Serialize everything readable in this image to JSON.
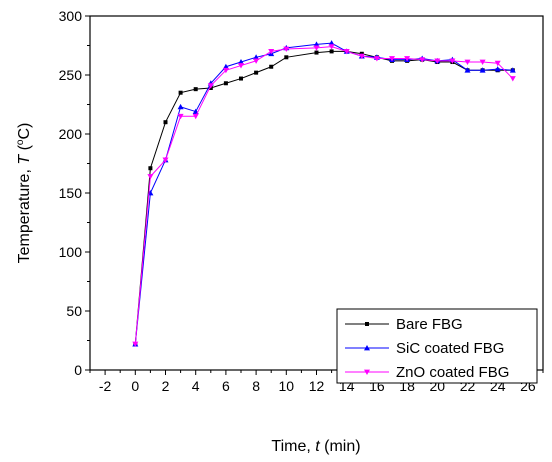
{
  "chart_data": {
    "type": "line",
    "title": "",
    "xlabel_prefix": "Time, ",
    "xlabel_var": "t",
    "xlabel_suffix": " (min)",
    "ylabel_prefix": "Temperature, ",
    "ylabel_var": "T",
    "ylabel_open": " (",
    "ylabel_sup": "o",
    "ylabel_unit": "C)",
    "xlim": [
      -3,
      27
    ],
    "ylim": [
      0,
      300
    ],
    "xticks": [
      -2,
      0,
      2,
      4,
      6,
      8,
      10,
      12,
      14,
      16,
      18,
      20,
      22,
      24,
      26
    ],
    "yticks": [
      0,
      50,
      100,
      150,
      200,
      250,
      300
    ],
    "grid": false,
    "legend_position": "bottom-right",
    "series": [
      {
        "name": "Bare FBG",
        "color": "#000000",
        "marker": "square",
        "x": [
          0,
          1,
          2,
          3,
          4,
          5,
          6,
          7,
          8,
          9,
          10,
          12,
          13,
          14,
          15,
          16,
          17,
          18,
          19,
          20,
          21,
          22,
          23,
          24,
          25
        ],
        "y": [
          22,
          171,
          210,
          235,
          238,
          239,
          243,
          247,
          252,
          257,
          265,
          269,
          270,
          270,
          268,
          265,
          262,
          262,
          263,
          261,
          261,
          254,
          254,
          254,
          254
        ]
      },
      {
        "name": "SiC coated FBG",
        "color": "#0000ff",
        "marker": "triangle-up",
        "x": [
          0,
          1,
          2,
          3,
          4,
          5,
          6,
          7,
          8,
          9,
          10,
          12,
          13,
          14,
          15,
          16,
          17,
          18,
          19,
          20,
          21,
          22,
          23,
          24,
          25
        ],
        "y": [
          22,
          150,
          178,
          223,
          219,
          243,
          257,
          261,
          265,
          268,
          273,
          276,
          277,
          270,
          266,
          265,
          263,
          263,
          264,
          262,
          263,
          254,
          254,
          255,
          254
        ]
      },
      {
        "name": "ZnO coated FBG",
        "color": "#ff00ff",
        "marker": "triangle-down",
        "x": [
          0,
          1,
          2,
          3,
          4,
          5,
          6,
          7,
          8,
          9,
          10,
          12,
          13,
          14,
          15,
          16,
          17,
          18,
          19,
          20,
          21,
          22,
          23,
          24,
          25
        ],
        "y": [
          22,
          164,
          178,
          215,
          215,
          241,
          254,
          258,
          262,
          270,
          272,
          273,
          274,
          270,
          266,
          264,
          264,
          264,
          263,
          262,
          262,
          261,
          261,
          260,
          247
        ]
      }
    ]
  }
}
